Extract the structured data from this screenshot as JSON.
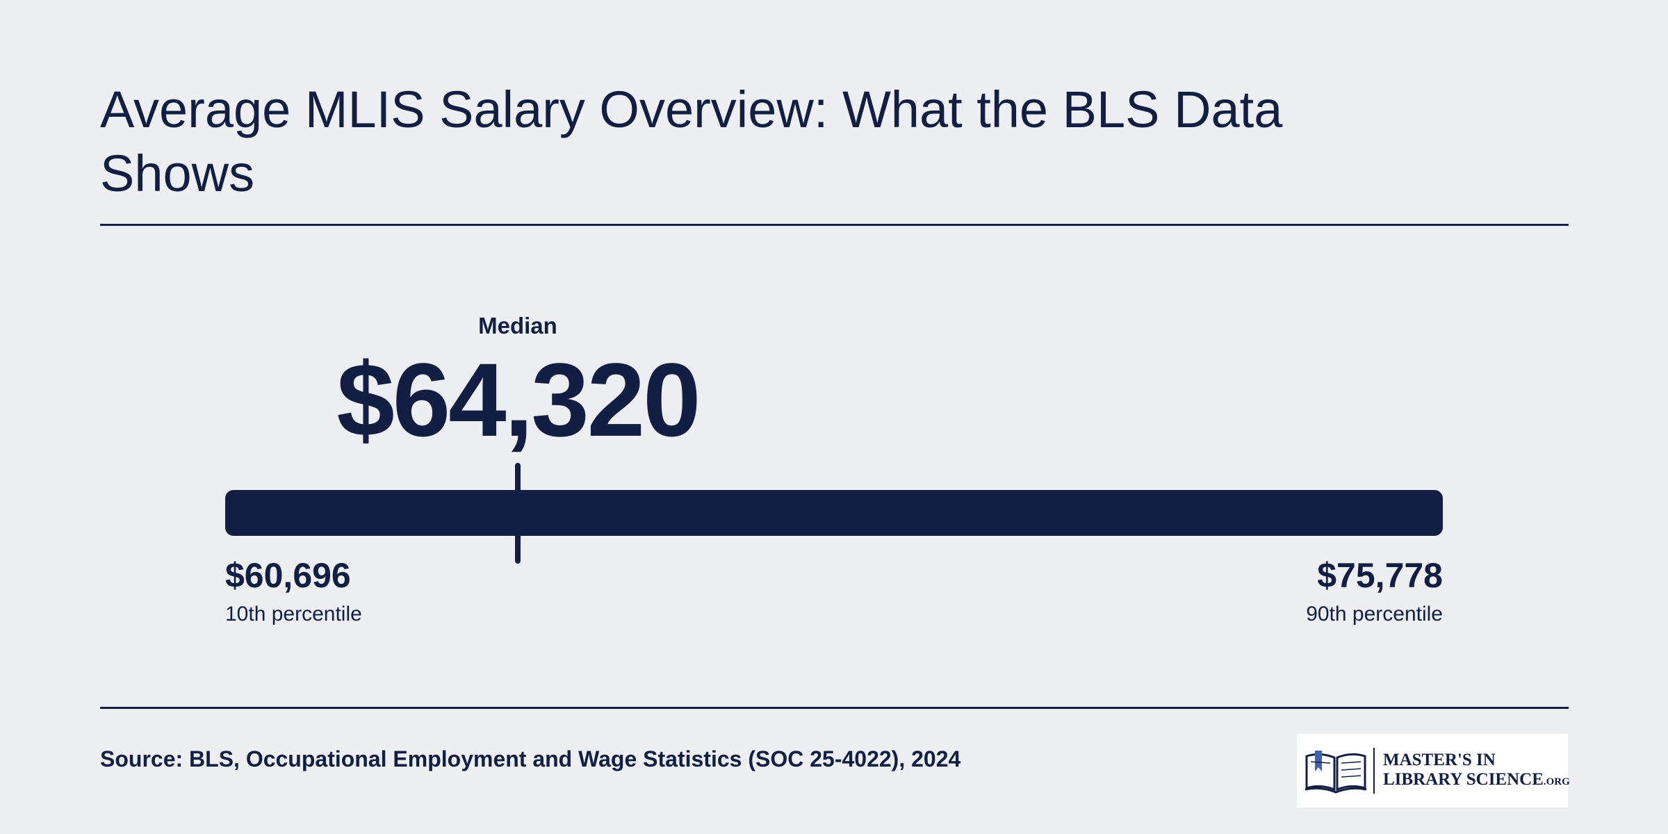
{
  "title": "Average MLIS Salary Overview: What the BLS Data Shows",
  "chart_data": {
    "type": "range",
    "median": {
      "label": "Median",
      "value": 64320,
      "display": "$64,320"
    },
    "low": {
      "value": 60696,
      "display": "$60,696",
      "label": "10th percentile"
    },
    "high": {
      "value": 75778,
      "display": "$75,778",
      "label": "90th percentile"
    }
  },
  "source": "Source: BLS, Occupational Employment and Wage Statistics (SOC 25-4022), 2024",
  "logo": {
    "line1": "MASTER'S IN",
    "line2_main": "LIBRARY SCIENCE",
    "line2_suffix": ".ORG",
    "icon": "open-book-icon"
  },
  "colors": {
    "background": "#edeef2",
    "primary": "#121f42",
    "accent": "#3d64a8"
  }
}
